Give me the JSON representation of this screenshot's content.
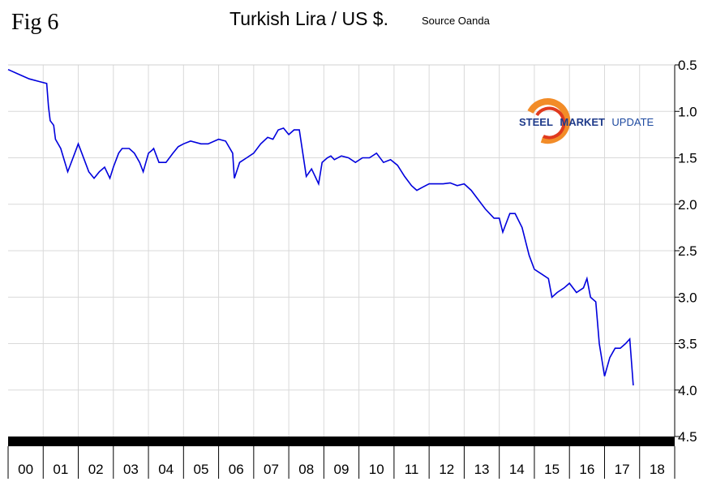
{
  "header": {
    "fig_label": "Fig 6",
    "title": "Turkish Lira / US $.",
    "source": "Source Oanda"
  },
  "logo": {
    "word1": "STEEL",
    "word2": "MARKET",
    "word3": "UPDATE",
    "colors": {
      "arc_orange": "#f28c28",
      "arc_red": "#e03a1e",
      "text_blue": "#1e3a8a"
    }
  },
  "chart_data": {
    "type": "line",
    "title": "Turkish Lira / US $.",
    "xlabel": "",
    "ylabel": "",
    "y_inverted": true,
    "y_axis_side": "right",
    "ylim": [
      0.5,
      4.5
    ],
    "y_ticks": [
      "0.5",
      "1.0",
      "1.5",
      "2.0",
      "2.5",
      "3.0",
      "3.5",
      "4.0",
      "4.5"
    ],
    "x_ticks": [
      "00",
      "01",
      "02",
      "03",
      "04",
      "05",
      "06",
      "07",
      "08",
      "09",
      "10",
      "11",
      "12",
      "13",
      "14",
      "15",
      "16",
      "17",
      "18"
    ],
    "xlim": [
      2000.0,
      2019.0
    ],
    "grid": true,
    "line_color": "#0000dd",
    "series": [
      {
        "x": [
          2000.0,
          2000.3,
          2000.6,
          2000.9,
          2001.1,
          2001.15,
          2001.2,
          2001.3,
          2001.35,
          2001.5,
          2001.7,
          2001.75,
          2001.9,
          2002.0,
          2002.1,
          2002.3,
          2002.45,
          2002.6,
          2002.75,
          2002.9,
          2003.0,
          2003.15,
          2003.25,
          2003.45,
          2003.6,
          2003.75,
          2003.85,
          2004.0,
          2004.1,
          2004.15,
          2004.3,
          2004.5,
          2004.7,
          2004.85,
          2005.0,
          2005.2,
          2005.5,
          2005.7,
          2006.0,
          2006.2,
          2006.4,
          2006.45,
          2006.6,
          2006.8,
          2007.0,
          2007.2,
          2007.4,
          2007.55,
          2007.7,
          2007.85,
          2008.0,
          2008.15,
          2008.3,
          2008.5,
          2008.65,
          2008.75,
          2008.85,
          2008.95,
          2009.1,
          2009.2,
          2009.3,
          2009.5,
          2009.7,
          2009.9,
          2010.1,
          2010.3,
          2010.5,
          2010.7,
          2010.9,
          2011.1,
          2011.3,
          2011.5,
          2011.65,
          2011.8,
          2012.0,
          2012.2,
          2012.4,
          2012.6,
          2012.8,
          2013.0,
          2013.2,
          2013.4,
          2013.6,
          2013.85,
          2014.0,
          2014.1,
          2014.3,
          2014.45,
          2014.65,
          2014.85,
          2015.0,
          2015.2,
          2015.4,
          2015.5,
          2015.65,
          2015.85,
          2016.0,
          2016.2,
          2016.4,
          2016.5,
          2016.6,
          2016.75,
          2016.85,
          2017.0,
          2017.15,
          2017.3,
          2017.45,
          2017.6,
          2017.72,
          2017.82
        ],
        "values": [
          0.55,
          0.6,
          0.65,
          0.68,
          0.7,
          0.95,
          1.1,
          1.15,
          1.3,
          1.4,
          1.65,
          1.6,
          1.45,
          1.35,
          1.45,
          1.65,
          1.72,
          1.65,
          1.6,
          1.72,
          1.6,
          1.45,
          1.4,
          1.4,
          1.45,
          1.55,
          1.65,
          1.45,
          1.42,
          1.4,
          1.55,
          1.55,
          1.45,
          1.38,
          1.35,
          1.32,
          1.35,
          1.35,
          1.3,
          1.32,
          1.45,
          1.72,
          1.55,
          1.5,
          1.45,
          1.35,
          1.28,
          1.3,
          1.2,
          1.18,
          1.25,
          1.2,
          1.2,
          1.7,
          1.62,
          1.7,
          1.78,
          1.55,
          1.5,
          1.48,
          1.52,
          1.48,
          1.5,
          1.55,
          1.5,
          1.5,
          1.45,
          1.55,
          1.52,
          1.58,
          1.7,
          1.8,
          1.85,
          1.82,
          1.78,
          1.78,
          1.78,
          1.77,
          1.8,
          1.78,
          1.85,
          1.95,
          2.05,
          2.15,
          2.15,
          2.3,
          2.1,
          2.1,
          2.25,
          2.55,
          2.7,
          2.75,
          2.8,
          3.0,
          2.95,
          2.9,
          2.85,
          2.95,
          2.9,
          2.8,
          3.0,
          3.05,
          3.5,
          3.85,
          3.65,
          3.55,
          3.55,
          3.5,
          3.45,
          3.95
        ]
      }
    ]
  }
}
